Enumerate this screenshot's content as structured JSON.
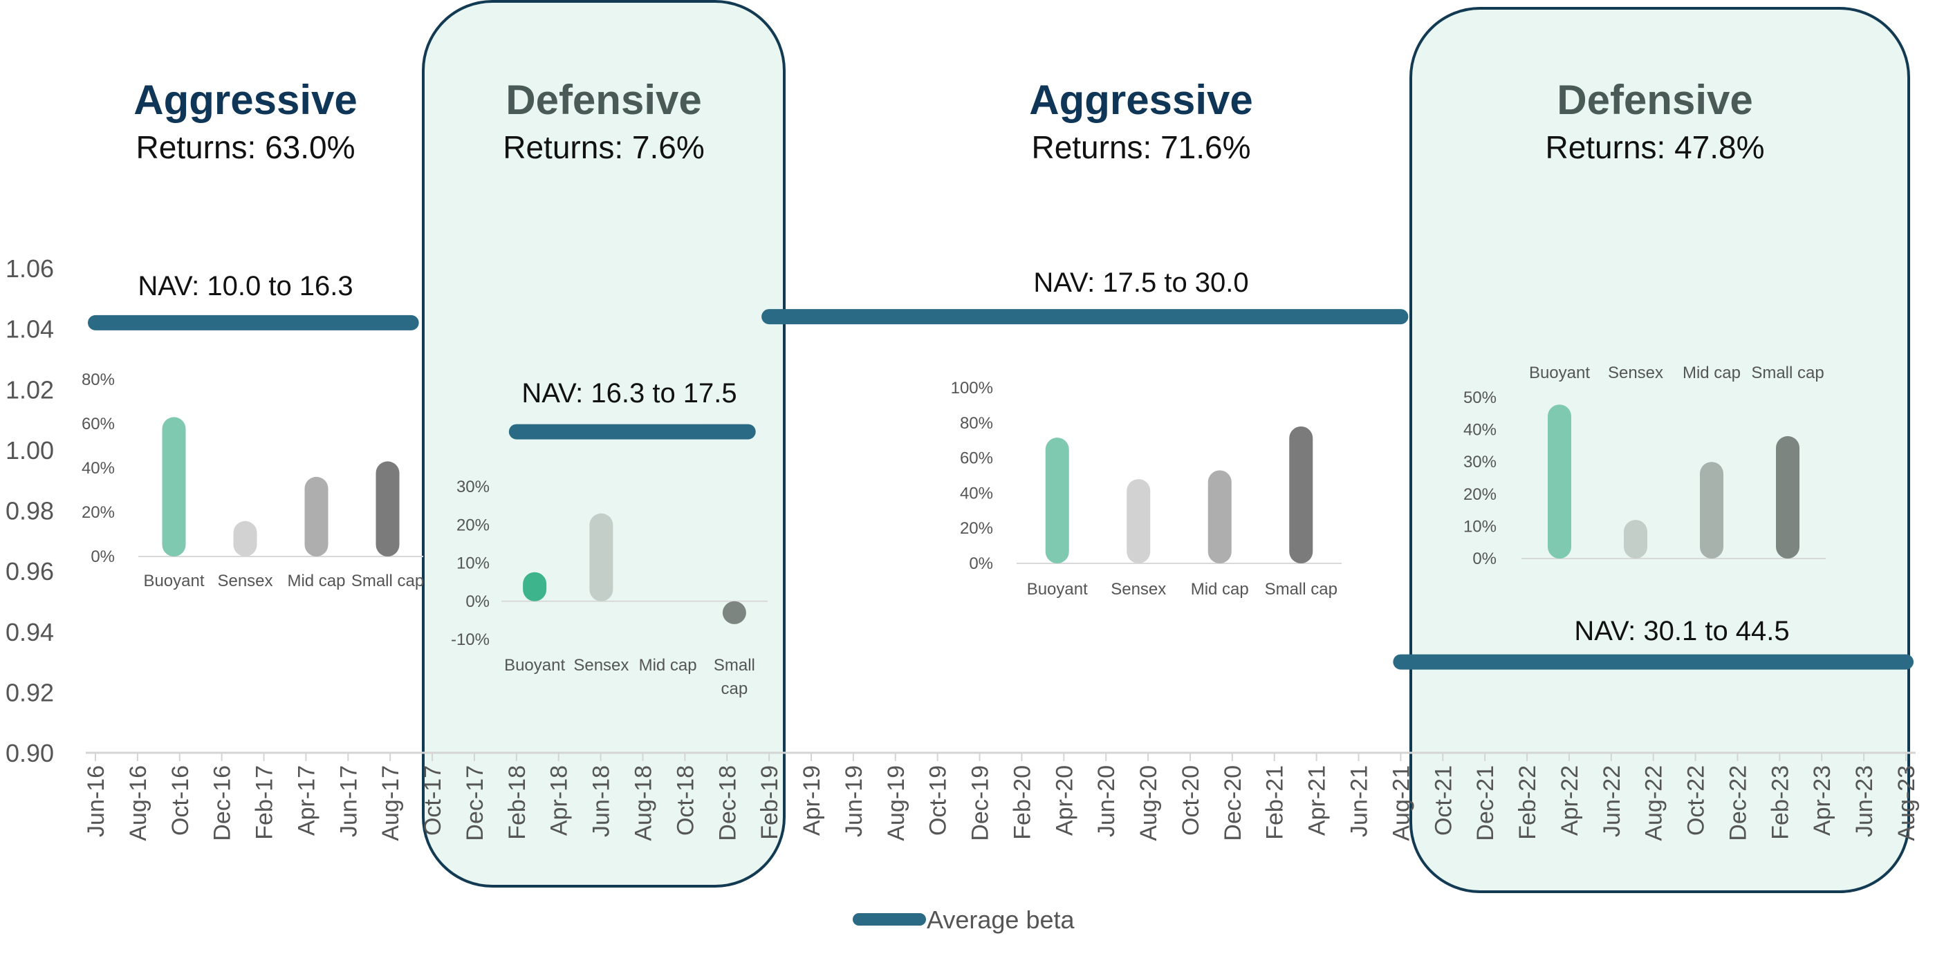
{
  "chart_data": {
    "type": "line",
    "y_range": [
      0.9,
      1.06
    ],
    "y_ticks": [
      "0.90",
      "0.92",
      "0.94",
      "0.96",
      "0.98",
      "1.00",
      "1.02",
      "1.04",
      "1.06"
    ],
    "x_ticks": [
      "Jun-16",
      "Aug-16",
      "Oct-16",
      "Dec-16",
      "Feb-17",
      "Apr-17",
      "Jun-17",
      "Aug-17",
      "Oct-17",
      "Dec-17",
      "Feb-18",
      "Apr-18",
      "Jun-18",
      "Aug-18",
      "Oct-18",
      "Dec-18",
      "Feb-19",
      "Apr-19",
      "Jun-19",
      "Aug-19",
      "Oct-19",
      "Dec-19",
      "Feb-20",
      "Apr-20",
      "Jun-20",
      "Aug-20",
      "Oct-20",
      "Dec-20",
      "Feb-21",
      "Apr-21",
      "Jun-21",
      "Aug-21",
      "Oct-21",
      "Dec-21",
      "Feb-22",
      "Apr-22",
      "Jun-22",
      "Aug-22",
      "Oct-22",
      "Dec-22",
      "Feb-23",
      "Apr-23",
      "Jun-23",
      "Aug-23"
    ],
    "legend": "bottom",
    "series": [
      {
        "name": "Average beta",
        "color": "#2a6a84",
        "segments": [
          {
            "from": "Jun-16",
            "to": "Sep-17",
            "value": 1.042
          },
          {
            "from": "Feb-18",
            "to": "Jan-19",
            "value": 1.006
          },
          {
            "from": "Feb-19",
            "to": "Aug-21",
            "value": 1.044
          },
          {
            "from": "Aug-21",
            "to": "Aug-23",
            "value": 0.93
          }
        ]
      }
    ],
    "regimes": [
      {
        "label": "Aggressive",
        "returns": "Returns: 63.0%",
        "nav": "NAV: 10.0 to 16.3",
        "shaded": false,
        "mini_chart": {
          "categories": [
            "Buoyant",
            "Sensex",
            "Mid cap",
            "Small cap"
          ],
          "values": [
            63.0,
            16,
            36,
            43
          ],
          "y_ticks": [
            "0%",
            "20%",
            "40%",
            "60%",
            "80%"
          ],
          "ylim": [
            0,
            80
          ]
        }
      },
      {
        "label": "Defensive",
        "returns": "Returns: 7.6%",
        "nav": "NAV: 16.3 to 17.5",
        "shaded": true,
        "mini_chart": {
          "categories": [
            "Buoyant",
            "Sensex",
            "Mid cap",
            "Small cap"
          ],
          "values": [
            7.6,
            23,
            0,
            -6
          ],
          "y_ticks": [
            "-10%",
            "0%",
            "10%",
            "20%",
            "30%"
          ],
          "ylim": [
            -10,
            30
          ]
        }
      },
      {
        "label": "Aggressive",
        "returns": "Returns: 71.6%",
        "nav": "NAV: 17.5 to 30.0",
        "shaded": false,
        "mini_chart": {
          "categories": [
            "Buoyant",
            "Sensex",
            "Mid cap",
            "Small cap"
          ],
          "values": [
            71.6,
            48,
            53,
            78
          ],
          "y_ticks": [
            "0%",
            "20%",
            "40%",
            "60%",
            "80%",
            "100%"
          ],
          "ylim": [
            0,
            100
          ]
        }
      },
      {
        "label": "Defensive",
        "returns": "Returns: 47.8%",
        "nav": "NAV: 30.1 to 44.5",
        "shaded": true,
        "mini_chart": {
          "categories": [
            "Buoyant",
            "Sensex",
            "Mid cap",
            "Small cap"
          ],
          "values": [
            47.8,
            12,
            30,
            38
          ],
          "y_ticks": [
            "0%",
            "10%",
            "20%",
            "30%",
            "40%",
            "50%"
          ],
          "ylim": [
            0,
            50
          ]
        }
      }
    ]
  },
  "colors": {
    "beta_line": "#2a6a84",
    "aggressive_heading": "#0f3557",
    "defensive_heading": "#4a5a56",
    "defensive_fill": "#e9f6f1",
    "defensive_border": "#123a52",
    "bar_buoyant": "#7ec9b0",
    "bar_buoyant_strong": "#3db48c",
    "bar_sensex": "#d2d2d2",
    "bar_sensex_alt": "#c4cec9",
    "bar_midcap": "#aeaeae",
    "bar_midcap_alt": "#a7b2ad",
    "bar_smallcap": "#7b7b7b",
    "bar_smallcap_alt": "#7d8580"
  }
}
